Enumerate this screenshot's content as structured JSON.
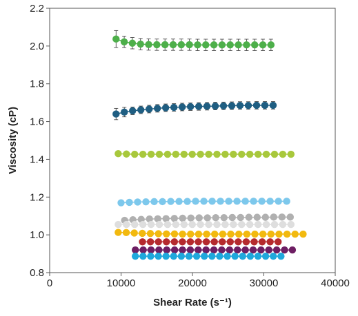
{
  "chart_data": {
    "type": "scatter",
    "title": "",
    "xlabel": "Shear Rate (s⁻¹)",
    "ylabel": "Viscosity (cP)",
    "xlim": [
      0,
      40000
    ],
    "ylim": [
      0.8,
      2.2
    ],
    "x_ticks": [
      0,
      10000,
      20000,
      30000,
      40000
    ],
    "x_tick_labels": [
      "0",
      "10000",
      "20000",
      "30000",
      "40000"
    ],
    "y_ticks": [
      0.8,
      1.0,
      1.2,
      1.4,
      1.6,
      1.8,
      2.0,
      2.2
    ],
    "y_tick_labels": [
      "0.8",
      "1.0",
      "1.2",
      "1.4",
      "1.6",
      "1.8",
      "2.0",
      "2.2"
    ],
    "grid": false,
    "legend": "none",
    "series": [
      {
        "color": "#4DAF4A",
        "x_start": 9300,
        "x_end": 31000,
        "points": 20,
        "values": [
          2.037,
          2.022,
          2.015,
          2.01,
          2.008,
          2.007,
          2.007,
          2.007,
          2.007,
          2.007,
          2.006,
          2.006,
          2.006,
          2.006,
          2.006,
          2.006,
          2.006,
          2.006,
          2.006,
          2.006
        ],
        "error": [
          0.045,
          0.03,
          0.03,
          0.03,
          0.03,
          0.03,
          0.03,
          0.03,
          0.03,
          0.03,
          0.03,
          0.03,
          0.03,
          0.03,
          0.03,
          0.03,
          0.03,
          0.03,
          0.03,
          0.03
        ]
      },
      {
        "color": "#1F5E82",
        "x_start": 9300,
        "x_end": 31300,
        "points": 20,
        "values": [
          1.64,
          1.65,
          1.657,
          1.662,
          1.666,
          1.67,
          1.673,
          1.675,
          1.677,
          1.679,
          1.68,
          1.681,
          1.682,
          1.683,
          1.684,
          1.685,
          1.685,
          1.686,
          1.686,
          1.686
        ],
        "error": [
          0.03,
          0.025,
          0.02,
          0.02,
          0.02,
          0.02,
          0.02,
          0.02,
          0.02,
          0.02,
          0.02,
          0.02,
          0.02,
          0.02,
          0.02,
          0.02,
          0.02,
          0.02,
          0.02,
          0.02
        ]
      },
      {
        "color": "#A8C83C",
        "x_start": 9600,
        "x_end": 33800,
        "points": 22,
        "values": [
          1.43,
          1.428,
          1.427,
          1.427,
          1.427,
          1.427,
          1.427,
          1.427,
          1.427,
          1.427,
          1.427,
          1.427,
          1.427,
          1.427,
          1.427,
          1.427,
          1.427,
          1.427,
          1.427,
          1.427,
          1.427,
          1.427
        ],
        "error": []
      },
      {
        "color": "#7DC8EC",
        "x_start": 10000,
        "x_end": 33200,
        "points": 21,
        "values": [
          1.17,
          1.172,
          1.174,
          1.175,
          1.176,
          1.176,
          1.177,
          1.177,
          1.177,
          1.178,
          1.178,
          1.178,
          1.178,
          1.178,
          1.178,
          1.178,
          1.178,
          1.178,
          1.178,
          1.178,
          1.178
        ],
        "error": []
      },
      {
        "color": "#B0B0B0",
        "x_start": 10500,
        "x_end": 33700,
        "points": 21,
        "values": [
          1.077,
          1.08,
          1.082,
          1.084,
          1.085,
          1.086,
          1.087,
          1.088,
          1.089,
          1.09,
          1.09,
          1.091,
          1.091,
          1.092,
          1.092,
          1.093,
          1.093,
          1.093,
          1.094,
          1.094,
          1.094
        ],
        "error": []
      },
      {
        "color": "#DEDEDE",
        "x_start": 9600,
        "x_end": 33800,
        "points": 22,
        "values": [
          1.055,
          1.055,
          1.055,
          1.055,
          1.055,
          1.055,
          1.055,
          1.055,
          1.055,
          1.055,
          1.055,
          1.055,
          1.055,
          1.055,
          1.055,
          1.055,
          1.055,
          1.055,
          1.055,
          1.055,
          1.055,
          1.055
        ],
        "error": []
      },
      {
        "color": "#F2B90F",
        "x_start": 9600,
        "x_end": 35500,
        "points": 24,
        "values": [
          1.013,
          1.012,
          1.01,
          1.008,
          1.007,
          1.006,
          1.005,
          1.005,
          1.004,
          1.004,
          1.004,
          1.004,
          1.004,
          1.004,
          1.004,
          1.004,
          1.004,
          1.004,
          1.004,
          1.004,
          1.004,
          1.004,
          1.004,
          1.004
        ],
        "error": []
      },
      {
        "color": "#B52A2E",
        "x_start": 13000,
        "x_end": 32000,
        "points": 18,
        "values": [
          0.963,
          0.963,
          0.963,
          0.963,
          0.963,
          0.963,
          0.963,
          0.963,
          0.963,
          0.963,
          0.963,
          0.963,
          0.963,
          0.963,
          0.963,
          0.963,
          0.963,
          0.963
        ],
        "error": []
      },
      {
        "color": "#6E1E63",
        "x_start": 12000,
        "x_end": 34000,
        "points": 21,
        "values": [
          0.92,
          0.92,
          0.92,
          0.92,
          0.92,
          0.92,
          0.92,
          0.92,
          0.92,
          0.92,
          0.92,
          0.92,
          0.92,
          0.92,
          0.92,
          0.92,
          0.92,
          0.92,
          0.92,
          0.92,
          0.92
        ],
        "error": []
      },
      {
        "color": "#1FA8DC",
        "x_start": 12000,
        "x_end": 32400,
        "points": 20,
        "values": [
          0.887,
          0.887,
          0.887,
          0.887,
          0.887,
          0.887,
          0.887,
          0.887,
          0.887,
          0.887,
          0.887,
          0.887,
          0.887,
          0.887,
          0.887,
          0.887,
          0.887,
          0.887,
          0.887,
          0.887
        ],
        "error": []
      }
    ]
  }
}
